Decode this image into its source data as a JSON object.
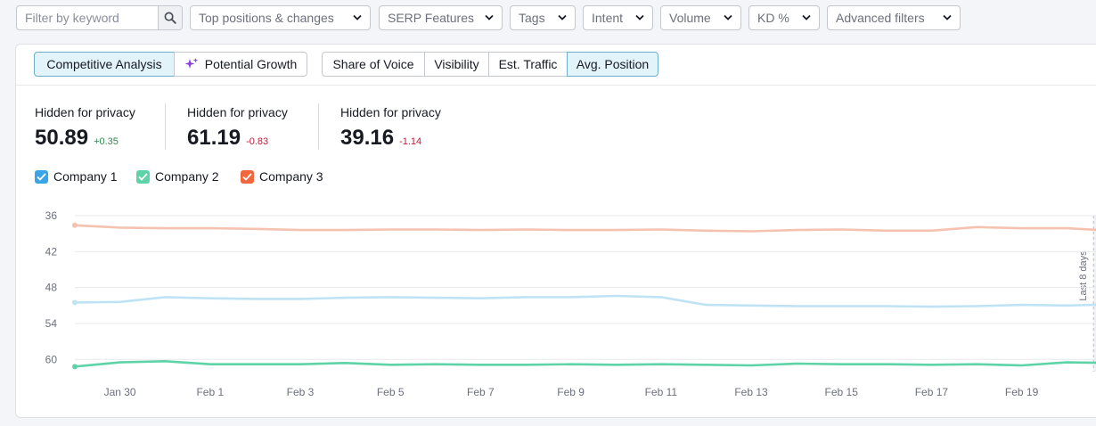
{
  "filters": {
    "search_placeholder": "Filter by keyword",
    "dropdowns": [
      "Top positions & changes",
      "SERP Features",
      "Tags",
      "Intent",
      "Volume",
      "KD %",
      "Advanced filters"
    ]
  },
  "tabs": {
    "analysis": [
      "Competitive Analysis",
      "Potential Growth"
    ],
    "metrics": [
      "Share of Voice",
      "Visibility",
      "Est. Traffic",
      "Avg. Position"
    ],
    "active_analysis": "Competitive Analysis",
    "active_metric": "Avg. Position"
  },
  "summary": [
    {
      "label": "Hidden for privacy",
      "value": "50.89",
      "delta": "+0.35"
    },
    {
      "label": "Hidden for privacy",
      "value": "61.19",
      "delta": "-0.83"
    },
    {
      "label": "Hidden for privacy",
      "value": "39.16",
      "delta": "-1.14"
    }
  ],
  "legend": [
    {
      "name": "Company 1",
      "color": "#3aa5e6"
    },
    {
      "name": "Company 2",
      "color": "#5fd3a8"
    },
    {
      "name": "Company 3",
      "color": "#f0673e"
    }
  ],
  "chart_data": {
    "type": "line",
    "title": "Avg. Position",
    "y_inverted": true,
    "ylim": [
      36,
      61.5
    ],
    "yticks": [
      36,
      42,
      48,
      54,
      60
    ],
    "x": [
      "Jan 29",
      "Jan 30",
      "Jan 31",
      "Feb 1",
      "Feb 2",
      "Feb 3",
      "Feb 4",
      "Feb 5",
      "Feb 6",
      "Feb 7",
      "Feb 8",
      "Feb 9",
      "Feb 10",
      "Feb 11",
      "Feb 12",
      "Feb 13",
      "Feb 14",
      "Feb 15",
      "Feb 16",
      "Feb 17",
      "Feb 18",
      "Feb 19",
      "Feb 20",
      "Feb 21"
    ],
    "x_tick_labels": [
      "Jan 30",
      "Feb 1",
      "Feb 3",
      "Feb 5",
      "Feb 7",
      "Feb 9",
      "Feb 11",
      "Feb 13",
      "Feb 15",
      "Feb 17",
      "Feb 19"
    ],
    "annotation": "Last 8 days",
    "series": [
      {
        "name": "Company 3",
        "color": "#f6c2b0",
        "values": [
          37.6,
          38.0,
          38.1,
          38.1,
          38.2,
          38.4,
          38.4,
          38.3,
          38.3,
          38.4,
          38.3,
          38.4,
          38.4,
          38.3,
          38.5,
          38.6,
          38.4,
          38.3,
          38.5,
          38.5,
          37.9,
          38.1,
          38.1,
          38.5
        ]
      },
      {
        "name": "Company 1",
        "color": "#bfe3f5",
        "values": [
          50.5,
          50.4,
          49.6,
          49.8,
          49.9,
          49.9,
          49.7,
          49.6,
          49.7,
          49.8,
          49.6,
          49.6,
          49.4,
          49.6,
          50.9,
          51.0,
          51.1,
          51.1,
          51.1,
          51.2,
          51.1,
          50.9,
          51.0,
          50.8
        ]
      },
      {
        "name": "Company 2",
        "color": "#5fd3a8",
        "values": [
          61.2,
          60.5,
          60.3,
          60.8,
          60.8,
          60.8,
          60.6,
          60.9,
          60.8,
          60.9,
          60.9,
          60.8,
          60.9,
          60.8,
          60.9,
          61.0,
          60.7,
          60.8,
          60.8,
          60.9,
          60.8,
          61.0,
          60.5,
          60.6
        ]
      }
    ]
  }
}
